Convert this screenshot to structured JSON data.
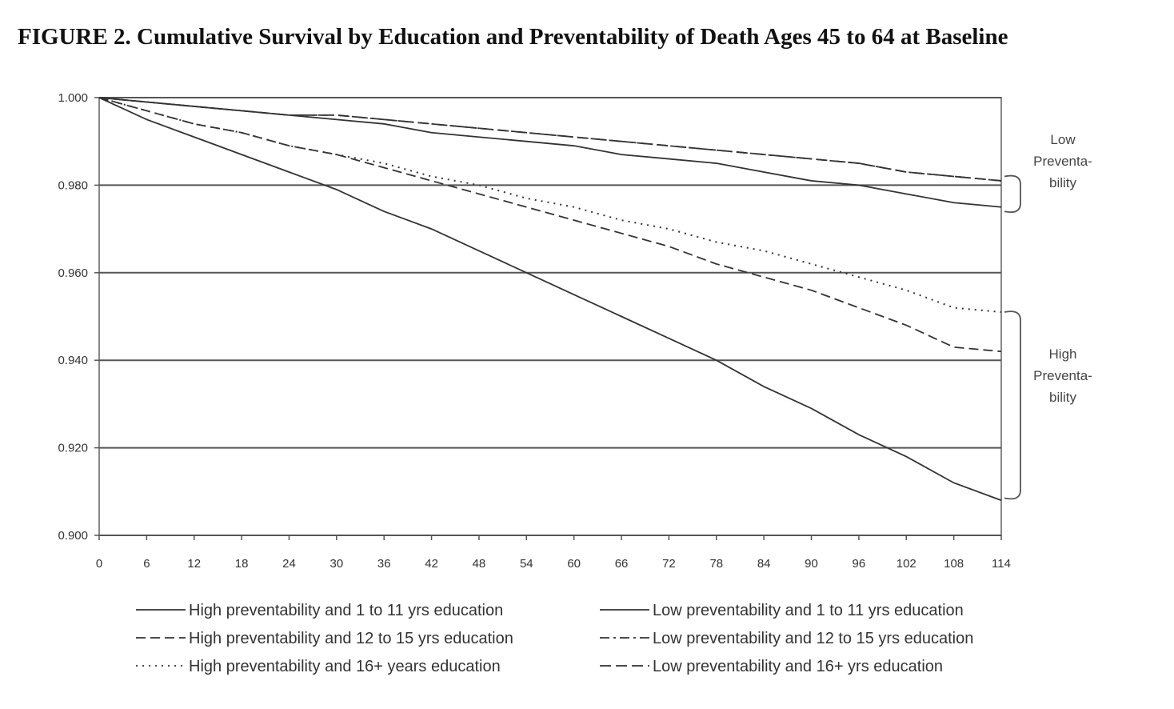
{
  "chart_data": {
    "type": "line",
    "title": "FIGURE 2. Cumulative Survival by Education and Preventability of Death Ages 45 to 64 at Baseline",
    "xlabel": "",
    "ylabel": "",
    "x": [
      0,
      6,
      12,
      18,
      24,
      30,
      36,
      42,
      48,
      54,
      60,
      66,
      72,
      78,
      84,
      90,
      96,
      102,
      108,
      114
    ],
    "xticks": [
      "0",
      "6",
      "12",
      "18",
      "24",
      "30",
      "36",
      "42",
      "48",
      "54",
      "60",
      "66",
      "72",
      "78",
      "84",
      "90",
      "96",
      "102",
      "108",
      "114"
    ],
    "yticks": [
      "0.900",
      "0.920",
      "0.940",
      "0.960",
      "0.980",
      "1.000"
    ],
    "ylim": [
      0.9,
      1.0
    ],
    "xlim": [
      0,
      114
    ],
    "grid": "horizontal",
    "legend_position": "bottom",
    "series": [
      {
        "name": "High preventability and 1 to 11 yrs education",
        "style": "solid",
        "values": [
          1,
          0.995,
          0.991,
          0.987,
          0.983,
          0.979,
          0.974,
          0.97,
          0.965,
          0.96,
          0.955,
          0.95,
          0.945,
          0.94,
          0.934,
          0.929,
          0.923,
          0.918,
          0.912,
          0.908
        ]
      },
      {
        "name": "High preventability and 12 to 15 yrs education",
        "style": "dashed",
        "values": [
          1,
          0.997,
          0.994,
          0.992,
          0.989,
          0.987,
          0.984,
          0.981,
          0.978,
          0.975,
          0.972,
          0.969,
          0.966,
          0.962,
          0.959,
          0.956,
          0.952,
          0.948,
          0.943,
          0.942
        ]
      },
      {
        "name": "High preventability and 16+ years education",
        "style": "dotted",
        "values": [
          1,
          0.997,
          0.994,
          0.992,
          0.989,
          0.987,
          0.985,
          0.982,
          0.98,
          0.977,
          0.975,
          0.972,
          0.97,
          0.967,
          0.965,
          0.962,
          0.959,
          0.956,
          0.952,
          0.951
        ]
      },
      {
        "name": "Low preventability and 1 to 11 yrs education",
        "style": "solid",
        "values": [
          1,
          0.999,
          0.998,
          0.997,
          0.996,
          0.995,
          0.994,
          0.992,
          0.991,
          0.99,
          0.989,
          0.987,
          0.986,
          0.985,
          0.983,
          0.981,
          0.98,
          0.978,
          0.976,
          0.975
        ]
      },
      {
        "name": "Low preventability and 12 to 15 yrs education",
        "style": "dashdot",
        "values": [
          1,
          0.999,
          0.998,
          0.997,
          0.996,
          0.996,
          0.995,
          0.994,
          0.993,
          0.992,
          0.991,
          0.99,
          0.989,
          0.988,
          0.987,
          0.986,
          0.985,
          0.983,
          0.982,
          0.981
        ]
      },
      {
        "name": "Low preventability and 16+ yrs education",
        "style": "longdash",
        "values": [
          1,
          0.999,
          0.998,
          0.997,
          0.996,
          0.996,
          0.995,
          0.994,
          0.993,
          0.992,
          0.991,
          0.99,
          0.989,
          0.988,
          0.987,
          0.986,
          0.985,
          0.983,
          0.982,
          0.981
        ]
      }
    ],
    "annotations": [
      {
        "lines": [
          "Low",
          "Preventa-",
          "bility"
        ]
      },
      {
        "lines": [
          "High",
          "Preventa-",
          "bility"
        ]
      }
    ]
  }
}
